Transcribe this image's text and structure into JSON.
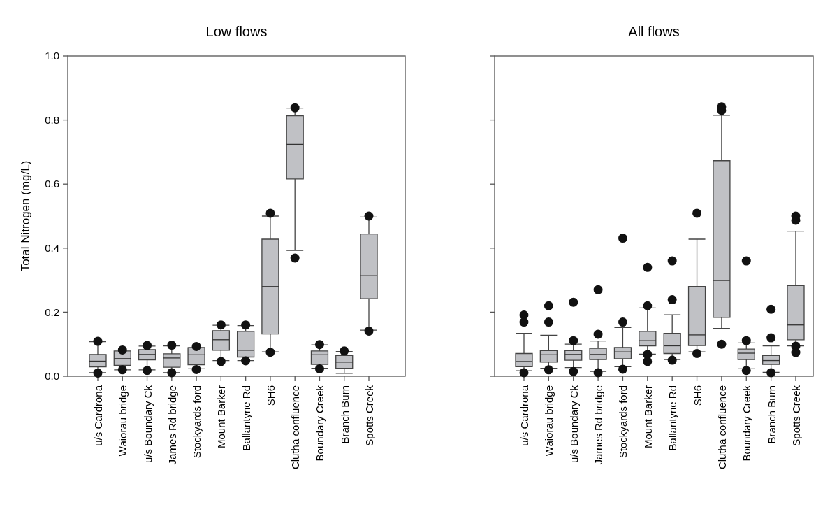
{
  "chart_data": [
    {
      "type": "box",
      "title": "Low flows",
      "ylabel": "Total Nitrogen (mg/L)",
      "categories": [
        "u/s Cardrona",
        "Waiorau bridge",
        "u/s Boundary Ck",
        "James Rd bridge",
        "Stockyards ford",
        "Mount Barker",
        "Ballantyne Rd",
        "SH6",
        "Clutha confluence",
        "Boundary Creek",
        "Branch Burn",
        "Spotts Creek"
      ],
      "ylim": [
        0,
        1
      ],
      "yticks": [
        {
          "value": 0,
          "label": "0.0"
        },
        {
          "value": 0.2,
          "label": "0.2"
        },
        {
          "value": 0.4,
          "label": "0.4"
        },
        {
          "value": 0.6,
          "label": "0.6"
        },
        {
          "value": 0.8,
          "label": "0.8"
        },
        {
          "value": 1,
          "label": "1.0"
        }
      ],
      "grid": false,
      "marker": "circle",
      "series": [
        {
          "color": "#c0c1c5",
          "boxes": [
            {
              "low": 0.011,
              "q1": 0.029,
              "median": 0.047,
              "q3": 0.068,
              "high": 0.108,
              "outliers": [
                0.109,
                0.01
              ]
            },
            {
              "low": 0.02,
              "q1": 0.034,
              "median": 0.055,
              "q3": 0.079,
              "high": 0.079,
              "outliers": [
                0.082,
                0.02
              ]
            },
            {
              "low": 0.02,
              "q1": 0.051,
              "median": 0.068,
              "q3": 0.083,
              "high": 0.094,
              "outliers": [
                0.096,
                0.018
              ]
            },
            {
              "low": 0.011,
              "q1": 0.028,
              "median": 0.057,
              "q3": 0.07,
              "high": 0.095,
              "outliers": [
                0.097,
                0.011
              ]
            },
            {
              "low": 0.023,
              "q1": 0.036,
              "median": 0.067,
              "q3": 0.089,
              "high": 0.09,
              "outliers": [
                0.093,
                0.021
              ]
            },
            {
              "low": 0.049,
              "q1": 0.081,
              "median": 0.114,
              "q3": 0.142,
              "high": 0.159,
              "outliers": [
                0.16,
                0.046
              ]
            },
            {
              "low": 0.049,
              "q1": 0.06,
              "median": 0.081,
              "q3": 0.14,
              "high": 0.158,
              "outliers": [
                0.16,
                0.048
              ]
            },
            {
              "low": 0.076,
              "q1": 0.132,
              "median": 0.28,
              "q3": 0.428,
              "high": 0.5,
              "outliers": [
                0.509,
                0.075
              ]
            },
            {
              "low": 0.393,
              "q1": 0.616,
              "median": 0.724,
              "q3": 0.813,
              "high": 0.837,
              "outliers": [
                0.838,
                0.369
              ]
            },
            {
              "low": 0.025,
              "q1": 0.037,
              "median": 0.067,
              "q3": 0.079,
              "high": 0.098,
              "outliers": [
                0.099,
                0.023
              ]
            },
            {
              "low": 0.009,
              "q1": 0.025,
              "median": 0.044,
              "q3": 0.065,
              "high": 0.077,
              "outliers": [
                0.079
              ]
            },
            {
              "low": 0.144,
              "q1": 0.242,
              "median": 0.314,
              "q3": 0.444,
              "high": 0.497,
              "outliers": [
                0.5,
                0.141
              ]
            }
          ]
        }
      ]
    },
    {
      "type": "box",
      "title": "All flows",
      "categories": [
        "u/s Cardrona",
        "Waiorau bridge",
        "u/s Boundary Ck",
        "James Rd bridge",
        "Stockyards ford",
        "Mount Barker",
        "Ballantyne Rd",
        "SH6",
        "Clutha confluence",
        "Boundary Creek",
        "Branch Burn",
        "Spotts Creek"
      ],
      "ylim": [
        0,
        1
      ],
      "yticks": [
        {
          "value": 0,
          "label": null
        },
        {
          "value": 0.2,
          "label": null
        },
        {
          "value": 0.4,
          "label": null
        },
        {
          "value": 0.6,
          "label": null
        },
        {
          "value": 0.8,
          "label": null
        },
        {
          "value": 1,
          "label": null
        }
      ],
      "tick_labels": "x",
      "grid": false,
      "marker": "circle",
      "series": [
        {
          "color": "#c0c1c5",
          "boxes": [
            {
              "low": 0.017,
              "q1": 0.03,
              "median": 0.046,
              "q3": 0.071,
              "high": 0.134,
              "outliers": [
                0.191,
                0.169,
                0.011
              ]
            },
            {
              "low": 0.025,
              "q1": 0.044,
              "median": 0.067,
              "q3": 0.08,
              "high": 0.128,
              "outliers": [
                0.22,
                0.169,
                0.02
              ]
            },
            {
              "low": 0.027,
              "q1": 0.05,
              "median": 0.068,
              "q3": 0.08,
              "high": 0.1,
              "outliers": [
                0.231,
                0.111,
                0.015
              ]
            },
            {
              "low": 0.015,
              "q1": 0.052,
              "median": 0.068,
              "q3": 0.087,
              "high": 0.11,
              "outliers": [
                0.27,
                0.131,
                0.011
              ]
            },
            {
              "low": 0.03,
              "q1": 0.055,
              "median": 0.076,
              "q3": 0.09,
              "high": 0.152,
              "outliers": [
                0.431,
                0.169,
                0.022
              ]
            },
            {
              "low": 0.069,
              "q1": 0.095,
              "median": 0.111,
              "q3": 0.14,
              "high": 0.213,
              "outliers": [
                0.34,
                0.22,
                0.068,
                0.046
              ]
            },
            {
              "low": 0.052,
              "q1": 0.071,
              "median": 0.095,
              "q3": 0.134,
              "high": 0.192,
              "outliers": [
                0.36,
                0.239,
                0.05
              ]
            },
            {
              "low": 0.076,
              "q1": 0.096,
              "median": 0.129,
              "q3": 0.28,
              "high": 0.428,
              "outliers": [
                0.509,
                0.071
              ]
            },
            {
              "low": 0.149,
              "q1": 0.184,
              "median": 0.299,
              "q3": 0.673,
              "high": 0.815,
              "outliers": [
                0.841,
                0.83,
                0.1
              ]
            },
            {
              "low": 0.023,
              "q1": 0.052,
              "median": 0.072,
              "q3": 0.085,
              "high": 0.104,
              "outliers": [
                0.36,
                0.111,
                0.018
              ]
            },
            {
              "low": 0.012,
              "q1": 0.037,
              "median": 0.049,
              "q3": 0.065,
              "high": 0.095,
              "outliers": [
                0.209,
                0.12,
                0.011
              ]
            },
            {
              "low": 0.095,
              "q1": 0.114,
              "median": 0.16,
              "q3": 0.283,
              "high": 0.453,
              "outliers": [
                0.5,
                0.487,
                0.094,
                0.074
              ]
            }
          ]
        }
      ]
    }
  ]
}
